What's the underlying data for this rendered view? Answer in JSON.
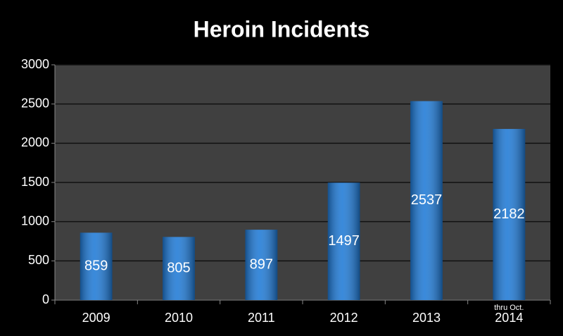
{
  "chart_data": {
    "type": "bar",
    "title": "Heroin Incidents",
    "categories": [
      "2009",
      "2010",
      "2011",
      "2012",
      "2013",
      "2014"
    ],
    "values": [
      859,
      805,
      897,
      1497,
      2537,
      2182
    ],
    "annotation": "thru Oct.",
    "color": "#1f7ad6",
    "ylim": [
      0,
      3000
    ],
    "yticks": [
      0,
      500,
      1000,
      1500,
      2000,
      2500,
      3000
    ],
    "grid": true
  }
}
